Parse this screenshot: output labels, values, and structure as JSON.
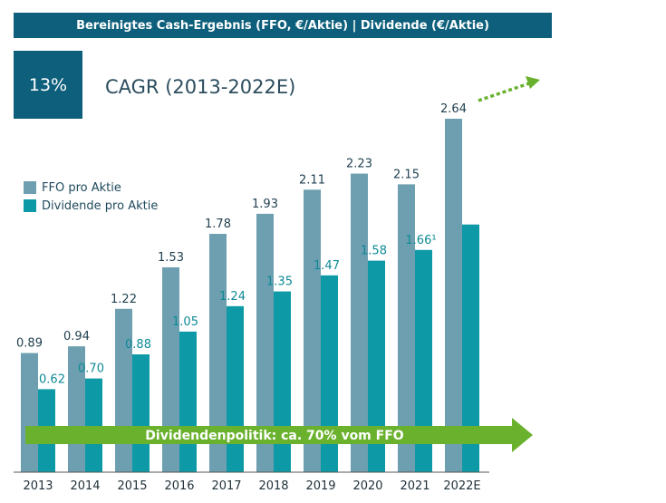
{
  "header": {
    "title": "Bereinigtes Cash-Ergebnis (FFO, €/Aktie) | Dividende (€/Aktie)"
  },
  "cagr": {
    "value": "13%",
    "label": "CAGR (2013-2022E)"
  },
  "colors": {
    "ffo": "#6d9fb0",
    "dividend": "#0d9aa6",
    "arrow": "#6ab22e",
    "header": "#0d5f7b"
  },
  "policy_arrow": {
    "text": "Dividendenpolitik: ca. 70% vom FFO"
  },
  "chart_data": {
    "type": "bar",
    "categories": [
      "2013",
      "2014",
      "2015",
      "2016",
      "2017",
      "2018",
      "2019",
      "2020",
      "2021",
      "2022E"
    ],
    "series": [
      {
        "name": "FFO pro Aktie",
        "values": [
          0.89,
          0.94,
          1.22,
          1.53,
          1.78,
          1.93,
          2.11,
          2.23,
          2.15,
          2.64
        ],
        "labels": [
          "0.89",
          "0.94",
          "1.22",
          "1.53",
          "1.78",
          "1.93",
          "2.11",
          "2.23",
          "2.15",
          "2.64"
        ]
      },
      {
        "name": "Dividende pro Aktie",
        "values": [
          0.62,
          0.7,
          0.88,
          1.05,
          1.24,
          1.35,
          1.47,
          1.58,
          1.66,
          1.85
        ],
        "labels": [
          "0.62",
          "0.70",
          "0.88",
          "1.05",
          "1.24",
          "1.35",
          "1.47",
          "1.58",
          "1.66¹",
          ""
        ]
      }
    ],
    "ylim": [
      0,
      2.64
    ],
    "grid": false,
    "legend": "left"
  }
}
